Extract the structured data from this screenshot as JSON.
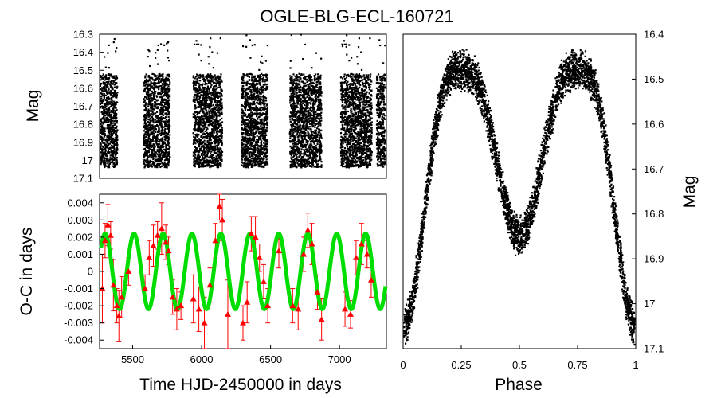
{
  "chart_data": [
    {
      "type": "scatter",
      "panel": "light-curve",
      "title": "OGLE-BLG-ECL-160721",
      "xlabel": "",
      "ylabel": "Mag",
      "xlim": [
        5260,
        7340
      ],
      "ylim": [
        17.1,
        16.3
      ],
      "y_inverted": true,
      "yticks": [
        "16.3",
        "16.4",
        "16.5",
        "16.6",
        "16.7",
        "16.8",
        "16.9",
        "17",
        "17.1"
      ],
      "seasons": [
        {
          "start": 5265,
          "end": 5390
        },
        {
          "start": 5580,
          "end": 5770
        },
        {
          "start": 5940,
          "end": 6150
        },
        {
          "start": 6290,
          "end": 6480
        },
        {
          "start": 6640,
          "end": 6870
        },
        {
          "start": 7010,
          "end": 7235
        },
        {
          "start": 7270,
          "end": 7330
        }
      ],
      "mag_range_per_season": [
        16.52,
        17.04
      ],
      "color": "#000000"
    },
    {
      "type": "scatter",
      "panel": "o-c-diagram",
      "xlabel": "Time HJD-2450000 in days",
      "ylabel": "O-C in days",
      "xlim": [
        5260,
        7340
      ],
      "ylim": [
        -0.0045,
        0.0045
      ],
      "xticks": [
        "5500",
        "6000",
        "6500",
        "7000"
      ],
      "xtick_values": [
        5500,
        6000,
        6500,
        7000
      ],
      "yticks": [
        "-0.004",
        "-0.003",
        "-0.002",
        "-0.001",
        "0",
        "0.001",
        "0.002",
        "0.003",
        "0.004"
      ],
      "ytick_values": [
        -0.004,
        -0.003,
        -0.002,
        -0.001,
        0,
        0.001,
        0.002,
        0.003,
        0.004
      ],
      "series": [
        {
          "name": "fit",
          "kind": "sinusoid",
          "amplitude": 0.0022,
          "period_days": 210,
          "phase_ref_time": 5300,
          "color": "#00dd00"
        },
        {
          "name": "measurements",
          "kind": "points-with-errorbars",
          "color": "#ff0000",
          "points": [
            {
              "x": 5280,
              "y": -0.001,
              "err": 0.002
            },
            {
              "x": 5300,
              "y": 0.0018,
              "err": 0.001
            },
            {
              "x": 5320,
              "y": 0.0027,
              "err": 0.0012
            },
            {
              "x": 5340,
              "y": 0.0021,
              "err": 0.0008
            },
            {
              "x": 5360,
              "y": -0.0008,
              "err": 0.0015
            },
            {
              "x": 5385,
              "y": -0.002,
              "err": 0.001
            },
            {
              "x": 5400,
              "y": -0.0026,
              "err": 0.0015
            },
            {
              "x": 5420,
              "y": -0.0015,
              "err": 0.0012
            },
            {
              "x": 5470,
              "y": 0.0,
              "err": 0.0008
            },
            {
              "x": 5590,
              "y": -0.001,
              "err": 0.0008
            },
            {
              "x": 5620,
              "y": 0.0008,
              "err": 0.001
            },
            {
              "x": 5650,
              "y": 0.0015,
              "err": 0.0012
            },
            {
              "x": 5680,
              "y": 0.0021,
              "err": 0.0008
            },
            {
              "x": 5710,
              "y": 0.0025,
              "err": 0.0015
            },
            {
              "x": 5740,
              "y": 0.0017,
              "err": 0.001
            },
            {
              "x": 5760,
              "y": 0.0012,
              "err": 0.0008
            },
            {
              "x": 5790,
              "y": -0.0015,
              "err": 0.001
            },
            {
              "x": 5820,
              "y": -0.0022,
              "err": 0.0012
            },
            {
              "x": 5850,
              "y": -0.002,
              "err": 0.0008
            },
            {
              "x": 5940,
              "y": -0.0016,
              "err": 0.0014
            },
            {
              "x": 5980,
              "y": -0.0022,
              "err": 0.0013
            },
            {
              "x": 6020,
              "y": -0.003,
              "err": 0.0015
            },
            {
              "x": 6060,
              "y": -0.0008,
              "err": 0.001
            },
            {
              "x": 6100,
              "y": 0.0018,
              "err": 0.001
            },
            {
              "x": 6130,
              "y": 0.0038,
              "err": 0.0008
            },
            {
              "x": 6150,
              "y": 0.003,
              "err": 0.0012
            },
            {
              "x": 6190,
              "y": -0.0025,
              "err": 0.002
            },
            {
              "x": 6300,
              "y": -0.003,
              "err": 0.001
            },
            {
              "x": 6330,
              "y": -0.0018,
              "err": 0.0012
            },
            {
              "x": 6360,
              "y": 0.0022,
              "err": 0.001
            },
            {
              "x": 6390,
              "y": 0.002,
              "err": 0.0012
            },
            {
              "x": 6420,
              "y": 0.0008,
              "err": 0.0008
            },
            {
              "x": 6450,
              "y": -0.0006,
              "err": 0.001
            },
            {
              "x": 6480,
              "y": -0.002,
              "err": 0.001
            },
            {
              "x": 6560,
              "y": 0.0012,
              "err": 0.001
            },
            {
              "x": 6660,
              "y": -0.002,
              "err": 0.001
            },
            {
              "x": 6700,
              "y": -0.0022,
              "err": 0.0012
            },
            {
              "x": 6740,
              "y": 0.001,
              "err": 0.001
            },
            {
              "x": 6770,
              "y": 0.0024,
              "err": 0.001
            },
            {
              "x": 6800,
              "y": 0.0016,
              "err": 0.0012
            },
            {
              "x": 6840,
              "y": -0.0012,
              "err": 0.001
            },
            {
              "x": 6870,
              "y": -0.0028,
              "err": 0.0012
            },
            {
              "x": 7040,
              "y": -0.0022,
              "err": 0.001
            },
            {
              "x": 7080,
              "y": -0.0025,
              "err": 0.0008
            },
            {
              "x": 7120,
              "y": 0.0008,
              "err": 0.001
            },
            {
              "x": 7160,
              "y": 0.0016,
              "err": 0.0012
            },
            {
              "x": 7200,
              "y": 0.001,
              "err": 0.0008
            },
            {
              "x": 7230,
              "y": -0.0005,
              "err": 0.001
            }
          ]
        }
      ]
    },
    {
      "type": "scatter",
      "panel": "phased-light-curve",
      "xlabel": "Phase",
      "ylabel": "Mag",
      "xlim": [
        0,
        1
      ],
      "ylim": [
        17.1,
        16.4
      ],
      "y_inverted": true,
      "xticks": [
        "0",
        "0.25",
        "0.5",
        "0.75",
        "1"
      ],
      "xtick_values": [
        0,
        0.25,
        0.5,
        0.75,
        1
      ],
      "yticks": [
        "16.4",
        "16.5",
        "16.6",
        "16.7",
        "16.8",
        "16.9",
        "17",
        "17.1"
      ],
      "ytick_values": [
        16.4,
        16.5,
        16.6,
        16.7,
        16.8,
        16.9,
        17.0,
        17.1
      ],
      "model_shape": {
        "max_mag_phase_0_25": 16.48,
        "max_mag_phase_0_75": 16.48,
        "primary_min_mag_phase_0": 17.05,
        "secondary_min_mag_phase_0_5": 16.85
      },
      "color": "#000000"
    }
  ]
}
